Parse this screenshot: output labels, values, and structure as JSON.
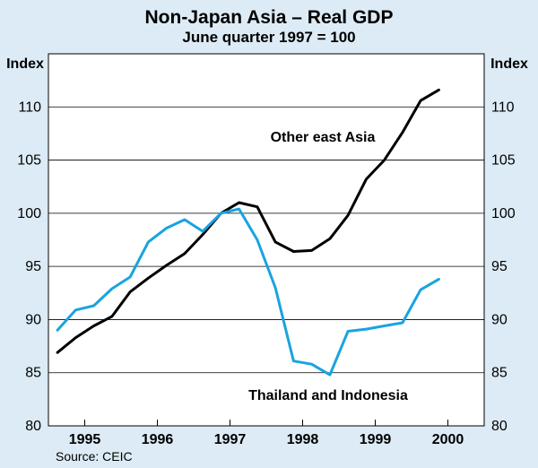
{
  "chart_data": {
    "type": "line",
    "title": "Non-Japan Asia – Real GDP",
    "subtitle": "June quarter 1997 = 100",
    "ylabel_left": "Index",
    "ylabel_right": "Index",
    "ylim": [
      80,
      115
    ],
    "yticks": [
      80,
      85,
      90,
      95,
      100,
      105,
      110
    ],
    "xlim": [
      1994.5,
      2000.5
    ],
    "xtick_labels": [
      "1995",
      "1996",
      "1997",
      "1998",
      "1999",
      "2000"
    ],
    "source": "Source: CEIC",
    "series": [
      {
        "name": "Other east Asia",
        "color": "#000000",
        "x": [
          1994.625,
          1994.875,
          1995.125,
          1995.375,
          1995.625,
          1995.875,
          1996.125,
          1996.375,
          1996.625,
          1996.875,
          1997.125,
          1997.375,
          1997.625,
          1997.875,
          1998.125,
          1998.375,
          1998.625,
          1998.875,
          1999.125,
          1999.375,
          1999.625,
          1999.875
        ],
        "values": [
          86.9,
          88.3,
          89.4,
          90.3,
          92.6,
          93.9,
          95.1,
          96.2,
          98.0,
          100.0,
          101.0,
          100.6,
          97.3,
          96.4,
          96.5,
          97.6,
          99.8,
          103.2,
          105.0,
          107.6,
          110.6,
          111.6
        ]
      },
      {
        "name": "Thailand and Indonesia",
        "color": "#1aa3e0",
        "x": [
          1994.625,
          1994.875,
          1995.125,
          1995.375,
          1995.625,
          1995.875,
          1996.125,
          1996.375,
          1996.625,
          1996.875,
          1997.125,
          1997.375,
          1997.625,
          1997.875,
          1998.125,
          1998.375,
          1998.625,
          1998.875,
          1999.125,
          1999.375,
          1999.625,
          1999.875
        ],
        "values": [
          89.0,
          90.9,
          91.3,
          92.9,
          94.0,
          97.3,
          98.6,
          99.4,
          98.3,
          100.0,
          100.4,
          97.5,
          93.0,
          86.1,
          85.8,
          84.8,
          88.9,
          89.1,
          89.4,
          89.7,
          92.8,
          93.8
        ]
      }
    ]
  }
}
